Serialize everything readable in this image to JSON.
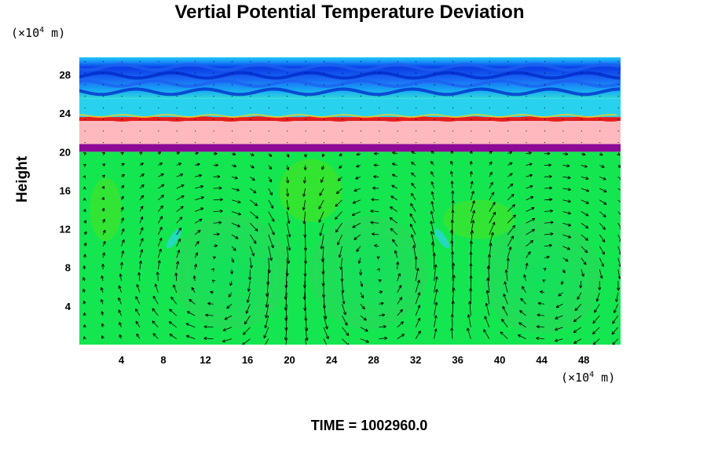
{
  "chart_data": {
    "type": "heatmap",
    "title": "Vertial Potential Temperature Deviation",
    "ylabel": "Height",
    "xlabel": "",
    "x_unit_base": "(×10",
    "x_unit_exp": "4",
    "x_unit_tail": " m)",
    "y_unit_base": "(×10",
    "y_unit_exp": "4",
    "y_unit_tail": " m)",
    "xlim": [
      0,
      51.5
    ],
    "ylim": [
      0,
      29.8
    ],
    "x_ticks": [
      4,
      8,
      12,
      16,
      20,
      24,
      28,
      32,
      36,
      40,
      44,
      48
    ],
    "y_ticks": [
      4,
      8,
      12,
      16,
      20,
      24,
      28
    ],
    "overlay": "wind vector arrows",
    "colorscale": [
      "#0000c8",
      "#1478ff",
      "#00dcdc",
      "#00f064",
      "#64e600",
      "#f0e600",
      "#e61e1e",
      "#ffb9be",
      "#8c0a96"
    ],
    "layers": [
      {
        "name": "upper-wave-band",
        "y_from": 25.5,
        "y_to": 29.8,
        "color": "#1a4cf0"
      },
      {
        "name": "cyan-transition",
        "y_from": 23.6,
        "y_to": 25.5,
        "color": "#28d2ee"
      },
      {
        "name": "red-line",
        "y_from": 23.2,
        "y_to": 23.6,
        "color": "#dc1e1e"
      },
      {
        "name": "pink-band",
        "y_from": 20.8,
        "y_to": 23.2,
        "color": "#ffb9be"
      },
      {
        "name": "purple-band",
        "y_from": 20.0,
        "y_to": 20.8,
        "color": "#8c0a96"
      },
      {
        "name": "lower-green",
        "y_from": 0,
        "y_to": 20.0,
        "color": "#14e650"
      }
    ],
    "circulation_cells": [
      {
        "center_x": 14.5,
        "center_y": 7.5,
        "rotation": "cw"
      },
      {
        "center_x": 27.5,
        "center_y": 7.5,
        "rotation": "ccw"
      },
      {
        "center_x": 44.0,
        "center_y": 7.0,
        "rotation": "cw"
      }
    ]
  },
  "footer": {
    "time_label": "TIME = 1002960.0"
  }
}
